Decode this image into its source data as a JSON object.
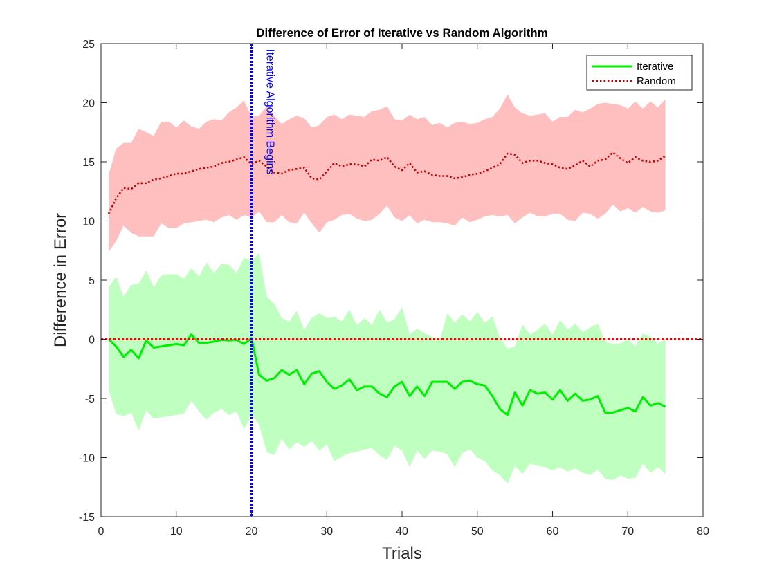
{
  "chart_data": {
    "type": "area",
    "title": "Difference of Error of Iterative vs Random Algorithm",
    "xlabel": "Trials",
    "ylabel": "Difference in Error",
    "xlim": [
      0,
      80
    ],
    "ylim": [
      -15,
      25
    ],
    "xticks": [
      0,
      10,
      20,
      30,
      40,
      50,
      60,
      70,
      80
    ],
    "yticks": [
      -15,
      -10,
      -5,
      0,
      5,
      10,
      15,
      20,
      25
    ],
    "grid": false,
    "legend_position": "top-right",
    "annotation": {
      "text": "Iterative Algorithm Begins",
      "x": 20,
      "color": "#0000ff"
    },
    "reference_line": {
      "y": 0,
      "color": "#ff0000",
      "style": "dotted"
    },
    "x": [
      1,
      2,
      3,
      4,
      5,
      6,
      7,
      8,
      9,
      10,
      11,
      12,
      13,
      14,
      15,
      16,
      17,
      18,
      19,
      20,
      21,
      22,
      23,
      24,
      25,
      26,
      27,
      28,
      29,
      30,
      31,
      32,
      33,
      34,
      35,
      36,
      37,
      38,
      39,
      40,
      41,
      42,
      43,
      44,
      45,
      46,
      47,
      48,
      49,
      50,
      51,
      52,
      53,
      54,
      55,
      56,
      57,
      58,
      59,
      60,
      61,
      62,
      63,
      64,
      65,
      66,
      67,
      68,
      69,
      70,
      71,
      72,
      73,
      74,
      75
    ],
    "series": [
      {
        "name": "Iterative",
        "color": "#00ee00",
        "band_color": "#bfffbf",
        "line_style": "solid",
        "values": [
          0,
          -0.6,
          -1.5,
          -0.9,
          -1.6,
          -0.1,
          -0.7,
          -0.6,
          -0.5,
          -0.4,
          -0.5,
          0.4,
          -0.3,
          -0.3,
          -0.2,
          -0.05,
          -0.1,
          -0.05,
          -0.4,
          0.1,
          -3.0,
          -3.5,
          -3.3,
          -2.6,
          -3.0,
          -2.6,
          -3.8,
          -2.9,
          -2.7,
          -3.6,
          -4.2,
          -3.9,
          -3.4,
          -4.3,
          -4.0,
          -4.0,
          -4.6,
          -4.9,
          -4.0,
          -3.6,
          -4.8,
          -4.0,
          -4.8,
          -3.6,
          -3.6,
          -3.6,
          -4.2,
          -3.6,
          -3.5,
          -3.8,
          -3.9,
          -4.8,
          -5.9,
          -6.4,
          -4.5,
          -5.6,
          -4.3,
          -4.6,
          -4.5,
          -5.1,
          -4.3,
          -5.2,
          -4.6,
          -5.2,
          -5.1,
          -4.8,
          -6.2,
          -6.2,
          -6.0,
          -5.8,
          -6.1,
          -4.9,
          -5.6,
          -5.4,
          -5.7
        ],
        "upper": [
          4.4,
          5.3,
          3.6,
          4.6,
          4.7,
          5.8,
          4.4,
          5.4,
          5.5,
          5.5,
          5.1,
          6.0,
          5.3,
          6.5,
          5.6,
          6.4,
          6.3,
          5.6,
          6.9,
          6.6,
          7.3,
          3.6,
          3.0,
          1.8,
          1.5,
          2.4,
          0.8,
          1.8,
          2.2,
          1.8,
          1.9,
          1.5,
          2.5,
          1.2,
          1.8,
          1.2,
          2.5,
          1.4,
          1.7,
          2.7,
          0.4,
          0.9,
          0.5,
          0.2,
          -0.1,
          2.2,
          1.4,
          2.1,
          1.5,
          2.3,
          1.4,
          1.9,
          0.1,
          -0.8,
          -0.6,
          1.2,
          0.4,
          0.8,
          1.3,
          0.4,
          1.6,
          0.8,
          1.3,
          0.6,
          1.0,
          1.3,
          -0.2,
          -0.4,
          -0.4,
          0.0,
          -0.6,
          0.5,
          0.2,
          -0.4,
          0.0
        ],
        "lower": [
          -4.3,
          -6.3,
          -6.5,
          -6.2,
          -7.7,
          -6.0,
          -6.7,
          -6.6,
          -6.5,
          -6.4,
          -6.3,
          -5.2,
          -6.1,
          -6.8,
          -6.2,
          -5.9,
          -6.4,
          -6.1,
          -7.6,
          -6.4,
          -7.2,
          -9.5,
          -9.8,
          -8.4,
          -9.3,
          -8.7,
          -9.1,
          -8.6,
          -9.4,
          -8.9,
          -10.3,
          -9.9,
          -9.6,
          -9.5,
          -9.3,
          -9.2,
          -9.8,
          -10.2,
          -9.0,
          -9.4,
          -10.8,
          -9.4,
          -10.1,
          -9.4,
          -9.5,
          -9.7,
          -10.8,
          -9.6,
          -9.3,
          -10.0,
          -10.3,
          -11.1,
          -11.5,
          -12.2,
          -10.7,
          -11.4,
          -10.5,
          -10.7,
          -10.8,
          -11.1,
          -10.8,
          -11.2,
          -10.9,
          -11.3,
          -11.5,
          -11.0,
          -11.8,
          -11.9,
          -11.5,
          -11.8,
          -11.7,
          -10.5,
          -11.3,
          -10.8,
          -11.4
        ]
      },
      {
        "name": "Random",
        "color": "#cc0000",
        "band_color": "#ffbfbf",
        "line_style": "dotted",
        "values": [
          10.6,
          11.9,
          12.8,
          12.7,
          13.2,
          13.2,
          13.5,
          13.6,
          13.8,
          14.0,
          14.0,
          14.2,
          14.4,
          14.5,
          14.6,
          14.9,
          15.0,
          15.2,
          15.4,
          14.8,
          15.1,
          14.6,
          14.1,
          14.0,
          14.3,
          14.4,
          14.5,
          13.6,
          13.5,
          14.2,
          14.9,
          14.6,
          14.8,
          14.8,
          14.6,
          15.2,
          15.1,
          15.4,
          14.6,
          14.3,
          14.9,
          14.1,
          14.2,
          13.9,
          13.8,
          13.8,
          13.6,
          13.7,
          13.9,
          14.0,
          14.2,
          14.5,
          14.8,
          15.7,
          15.6,
          14.9,
          15.1,
          15.1,
          14.9,
          14.8,
          14.5,
          14.4,
          14.7,
          15.1,
          14.6,
          15.1,
          15.2,
          15.8,
          15.3,
          14.9,
          15.4,
          15.1,
          15.0,
          15.1,
          15.5
        ],
        "upper": [
          13.9,
          16.1,
          16.6,
          16.6,
          17.8,
          17.5,
          17.2,
          18.4,
          18.4,
          17.9,
          18.5,
          18.0,
          17.8,
          18.4,
          18.6,
          18.5,
          19.2,
          19.6,
          20.2,
          18.8,
          18.9,
          19.7,
          18.9,
          18.2,
          18.6,
          18.9,
          18.7,
          17.9,
          18.1,
          18.8,
          19.0,
          18.6,
          19.0,
          18.9,
          18.8,
          19.3,
          19.4,
          19.7,
          18.6,
          18.5,
          19.0,
          18.6,
          18.8,
          18.1,
          18.3,
          17.9,
          18.3,
          18.4,
          18.2,
          18.3,
          18.6,
          18.8,
          19.5,
          20.7,
          19.6,
          19.1,
          18.9,
          19.0,
          19.1,
          18.4,
          18.8,
          18.8,
          19.4,
          19.2,
          19.5,
          19.9,
          20.0,
          19.9,
          19.8,
          19.5,
          20.1,
          19.5,
          20.1,
          19.6,
          20.3
        ],
        "lower": [
          7.4,
          8.3,
          9.6,
          9.0,
          8.7,
          8.7,
          8.7,
          9.8,
          9.4,
          9.4,
          9.8,
          9.9,
          10.0,
          10.1,
          9.9,
          10.3,
          10.5,
          10.1,
          10.5,
          10.3,
          10.8,
          9.9,
          9.9,
          10.5,
          9.9,
          9.8,
          10.7,
          9.8,
          9.0,
          9.9,
          10.1,
          10.5,
          10.6,
          10.2,
          10.0,
          10.1,
          10.6,
          11.3,
          10.3,
          10.0,
          10.5,
          9.8,
          10.1,
          9.9,
          9.9,
          9.8,
          9.6,
          10.3,
          9.9,
          10.1,
          10.4,
          10.5,
          10.4,
          10.5,
          9.8,
          10.3,
          10.7,
          10.4,
          10.4,
          10.6,
          10.6,
          10.1,
          10.0,
          10.7,
          10.6,
          10.2,
          10.6,
          11.4,
          10.8,
          11.1,
          10.7,
          11.2,
          10.8,
          10.7,
          10.9
        ]
      }
    ]
  }
}
